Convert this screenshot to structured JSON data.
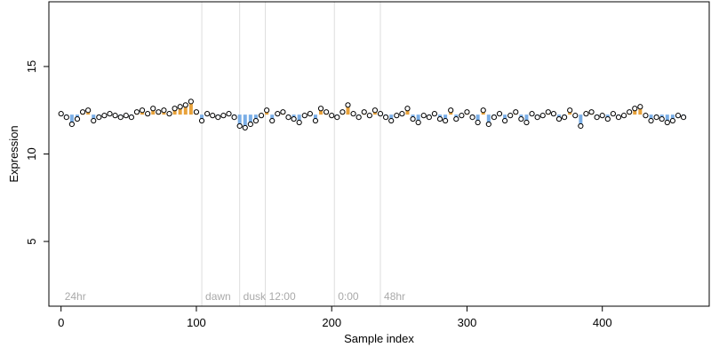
{
  "chart_data": {
    "type": "scatter",
    "title": "",
    "xlabel": "Sample index",
    "ylabel": "Expression",
    "xlim": [
      -9,
      479
    ],
    "ylim": [
      1.3,
      18.7
    ],
    "x_ticks": [
      0,
      100,
      200,
      300,
      400
    ],
    "y_ticks": [
      5,
      10,
      15
    ],
    "grid": false,
    "legend": "none",
    "baseline": 12.25,
    "colors": {
      "points_fill": "#ffffff",
      "points_stroke": "#000000",
      "above_baseline": "#e8a23a",
      "below_baseline": "#7aaee6",
      "markers": "#dddddd",
      "annotation_text": "#a9a9a9"
    },
    "markers": [
      {
        "x": 0,
        "label": "24hr",
        "line": false
      },
      {
        "x": 104,
        "label": "dawn",
        "line": true
      },
      {
        "x": 132,
        "label": "dusk",
        "line": true
      },
      {
        "x": 151,
        "label": "12:00",
        "line": true
      },
      {
        "x": 202,
        "label": "0:00",
        "line": true
      },
      {
        "x": 236,
        "label": "48hr",
        "line": true
      }
    ],
    "series": [
      {
        "x": [
          0,
          4,
          8,
          12,
          16,
          20,
          24,
          28,
          32,
          36,
          40,
          44,
          48,
          52,
          56,
          60,
          64,
          68,
          72,
          76,
          80,
          84,
          88,
          92,
          96,
          100,
          104,
          108,
          112,
          116,
          120,
          124,
          128,
          132,
          136,
          140,
          144,
          148,
          152,
          156,
          160,
          164,
          168,
          172,
          176,
          180,
          184,
          188,
          192,
          196,
          200,
          204,
          208,
          212,
          216,
          220,
          224,
          228,
          232,
          236,
          240,
          244,
          248,
          252,
          256,
          260,
          264,
          268,
          272,
          276,
          280,
          284,
          288,
          292,
          296,
          300,
          304,
          308,
          312,
          316,
          320,
          324,
          328,
          332,
          336,
          340,
          344,
          348,
          352,
          356,
          360,
          364,
          368,
          372,
          376,
          380,
          384,
          388,
          392,
          396,
          400,
          404,
          408,
          412,
          416,
          420,
          424,
          428,
          432,
          436,
          440,
          444,
          448,
          452,
          456,
          460
        ],
        "y": [
          12.3,
          12.1,
          11.7,
          12.0,
          12.4,
          12.5,
          11.9,
          12.1,
          12.2,
          12.3,
          12.2,
          12.1,
          12.2,
          12.1,
          12.4,
          12.5,
          12.3,
          12.6,
          12.4,
          12.5,
          12.3,
          12.6,
          12.7,
          12.8,
          13.0,
          12.4,
          11.9,
          12.3,
          12.2,
          12.1,
          12.2,
          12.3,
          12.1,
          11.6,
          11.5,
          11.7,
          11.9,
          12.2,
          12.5,
          11.9,
          12.3,
          12.4,
          12.1,
          12.0,
          11.8,
          12.2,
          12.3,
          11.9,
          12.6,
          12.4,
          12.2,
          12.1,
          12.4,
          12.8,
          12.3,
          12.1,
          12.4,
          12.2,
          12.5,
          12.3,
          12.1,
          11.9,
          12.2,
          12.3,
          12.6,
          12.0,
          11.8,
          12.2,
          12.1,
          12.3,
          12.0,
          11.9,
          12.5,
          12.0,
          12.2,
          12.4,
          12.1,
          11.8,
          12.5,
          11.7,
          12.1,
          12.3,
          11.9,
          12.2,
          12.4,
          12.0,
          11.8,
          12.3,
          12.1,
          12.2,
          12.4,
          12.3,
          12.0,
          12.1,
          12.5,
          12.2,
          11.6,
          12.3,
          12.4,
          12.1,
          12.2,
          12.0,
          12.3,
          12.1,
          12.2,
          12.4,
          12.6,
          12.7,
          12.2,
          11.9,
          12.1,
          12.0,
          11.8,
          11.9,
          12.2,
          12.1
        ]
      }
    ]
  }
}
